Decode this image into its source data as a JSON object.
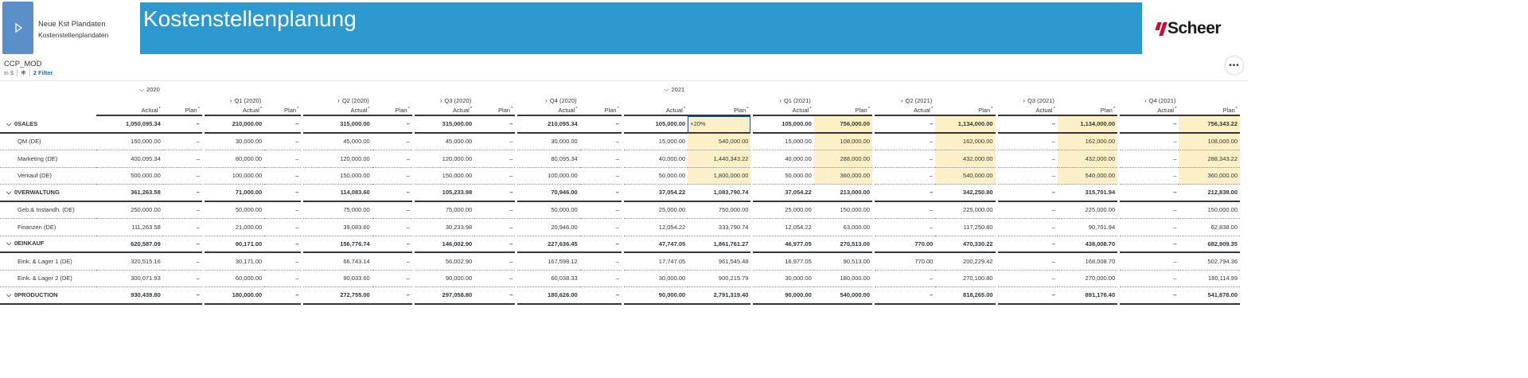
{
  "header": {
    "story_title": "Neue Kst Plandaten",
    "story_subtitle": "Kostenstellenplandaten",
    "banner_title": "Kostenstellenplanung",
    "logo_text": "Scheer",
    "accent_color": "#2c99d0",
    "logo_color": "#c8102e"
  },
  "model": {
    "name": "CCP_MOD",
    "currency": "in $",
    "filter_label": "2 Filter"
  },
  "columns": {
    "year_2020": "2020",
    "year_2021": "2021",
    "q1_2020": "Q1 (2020)",
    "q2_2020": "Q2 (2020)",
    "q3_2020": "Q3 (2020)",
    "q4_2020": "Q4 (2020)",
    "q1_2021": "Q1 (2021)",
    "q2_2021": "Q2 (2021)",
    "q3_2021": "Q3 (2021)",
    "q4_2021": "Q4 (2021)",
    "actual": "Actual",
    "plan": "Plan",
    "star": "*"
  },
  "rows": [
    {
      "label": "0SALES",
      "type": "group",
      "values": [
        "1,050,095.34",
        "–",
        "210,000.00",
        "–",
        "315,000.00",
        "–",
        "315,000.00",
        "–",
        "210,095.34",
        "–",
        "105,000.00",
        "+20%",
        "105,000.00",
        "756,000.00",
        "–",
        "1,134,000.00",
        "–",
        "1,134,000.00",
        "–",
        "756,343.22"
      ]
    },
    {
      "label": "QM (DE)",
      "type": "child",
      "values": [
        "150,000.00",
        "–",
        "30,000.00",
        "–",
        "45,000.00",
        "–",
        "45,000.00",
        "–",
        "30,000.00",
        "–",
        "15,000.00",
        "540,000.00",
        "15,000.00",
        "108,000.00",
        "–",
        "162,000.00",
        "–",
        "162,000.00",
        "–",
        "108,000.00"
      ]
    },
    {
      "label": "Marketing (DE)",
      "type": "child",
      "values": [
        "400,095.34",
        "–",
        "80,000.00",
        "–",
        "120,000.00",
        "–",
        "120,000.00",
        "–",
        "80,095.34",
        "–",
        "40,000.00",
        "1,440,343.22",
        "40,000.00",
        "288,000.00",
        "–",
        "432,000.00",
        "–",
        "432,000.00",
        "–",
        "288,343.22"
      ]
    },
    {
      "label": "Verkauf (DE)",
      "type": "child",
      "values": [
        "500,000.00",
        "–",
        "100,000.00",
        "–",
        "150,000.00",
        "–",
        "150,000.00",
        "–",
        "100,000.00",
        "–",
        "50,000.00",
        "1,800,000.00",
        "50,000.00",
        "360,000.00",
        "–",
        "540,000.00",
        "–",
        "540,000.00",
        "–",
        "360,000.00"
      ]
    },
    {
      "label": "0VERWALTUNG",
      "type": "group",
      "values": [
        "361,263.58",
        "–",
        "71,000.00",
        "–",
        "114,083.60",
        "–",
        "105,233.98",
        "–",
        "70,946.00",
        "–",
        "37,054.22",
        "1,083,790.74",
        "37,054.22",
        "213,000.00",
        "–",
        "342,250.80",
        "–",
        "315,701.94",
        "–",
        "212,838.00"
      ]
    },
    {
      "label": "Geb.& Instandh. (DE)",
      "type": "child",
      "values": [
        "250,000.00",
        "–",
        "50,000.00",
        "–",
        "75,000.00",
        "–",
        "75,000.00",
        "–",
        "50,000.00",
        "–",
        "25,000.00",
        "750,000.00",
        "25,000.00",
        "150,000.00",
        "–",
        "225,000.00",
        "–",
        "225,000.00",
        "–",
        "150,000.00"
      ]
    },
    {
      "label": "Finanzen (DE)",
      "type": "child",
      "values": [
        "111,263.58",
        "–",
        "21,000.00",
        "–",
        "39,083.60",
        "–",
        "30,233.98",
        "–",
        "20,946.00",
        "–",
        "12,054.22",
        "333,790.74",
        "12,054.22",
        "63,000.00",
        "–",
        "117,250.80",
        "–",
        "90,701.94",
        "–",
        "62,838.00"
      ]
    },
    {
      "label": "0EINKAUF",
      "type": "group",
      "values": [
        "620,587.09",
        "–",
        "90,171.00",
        "–",
        "156,776.74",
        "–",
        "146,002.90",
        "–",
        "227,636.45",
        "–",
        "47,747.05",
        "1,861,761.27",
        "46,977.05",
        "270,513.00",
        "770.00",
        "470,330.22",
        "–",
        "438,008.70",
        "–",
        "682,909.35"
      ]
    },
    {
      "label": "Eink. & Lager 1 (DE)",
      "type": "child",
      "values": [
        "320,515.16",
        "–",
        "30,171.00",
        "–",
        "66,743.14",
        "–",
        "56,002.90",
        "–",
        "167,598.12",
        "–",
        "17,747.05",
        "961,545.48",
        "16,977.05",
        "90,513.00",
        "770.00",
        "200,229.42",
        "–",
        "168,008.70",
        "–",
        "502,794.36"
      ]
    },
    {
      "label": "Eink. & Lager 2 (DE)",
      "type": "child",
      "values": [
        "300,071.93",
        "–",
        "60,000.00",
        "–",
        "90,033.60",
        "–",
        "90,000.00",
        "–",
        "60,038.33",
        "–",
        "30,000.00",
        "900,215.79",
        "30,000.00",
        "180,000.00",
        "–",
        "270,100.80",
        "–",
        "270,000.00",
        "–",
        "180,114.99"
      ]
    },
    {
      "label": "0PRODUCTION",
      "type": "group",
      "values": [
        "930,439.80",
        "–",
        "180,000.00",
        "–",
        "272,755.00",
        "–",
        "297,058.80",
        "–",
        "180,626.00",
        "–",
        "90,000.00",
        "2,791,319.40",
        "90,000.00",
        "540,000.00",
        "–",
        "818,265.00",
        "–",
        "891,176.40",
        "–",
        "541,878.00"
      ]
    }
  ]
}
